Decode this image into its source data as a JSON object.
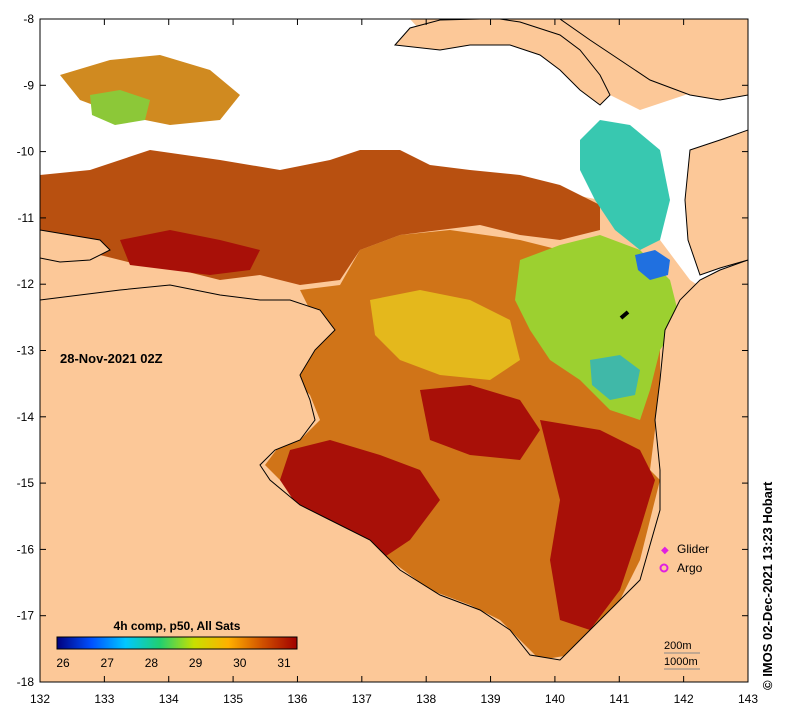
{
  "map": {
    "date_label": "28-Nov-2021 02Z",
    "credit": "© IMOS 02-Dec-2021 13:23 Hobart",
    "x_ticks": [
      "132",
      "133",
      "134",
      "135",
      "136",
      "137",
      "138",
      "139",
      "140",
      "141",
      "142",
      "143"
    ],
    "y_ticks": [
      "-8",
      "-9",
      "-10",
      "-11",
      "-12",
      "-13",
      "-14",
      "-15",
      "-16",
      "-17",
      "-18"
    ],
    "legend": {
      "glider_label": "Glider",
      "argo_label": "Argo",
      "glider_color": "#e020e0",
      "argo_color": "#e020e0"
    },
    "colorbar": {
      "title": "4h comp, p50, All Sats",
      "ticks": [
        "26",
        "27",
        "28",
        "29",
        "30",
        "31"
      ],
      "colors": [
        "#00007f",
        "#0050ff",
        "#00c8ff",
        "#20d070",
        "#c8e000",
        "#ffb000",
        "#d05000",
        "#a00000"
      ]
    },
    "depth_contours": {
      "label_200": "200m",
      "label_1000": "1000m"
    },
    "colors": {
      "land": "#fcc898",
      "no_data": "#ffffff",
      "coastline": "#000000"
    }
  }
}
